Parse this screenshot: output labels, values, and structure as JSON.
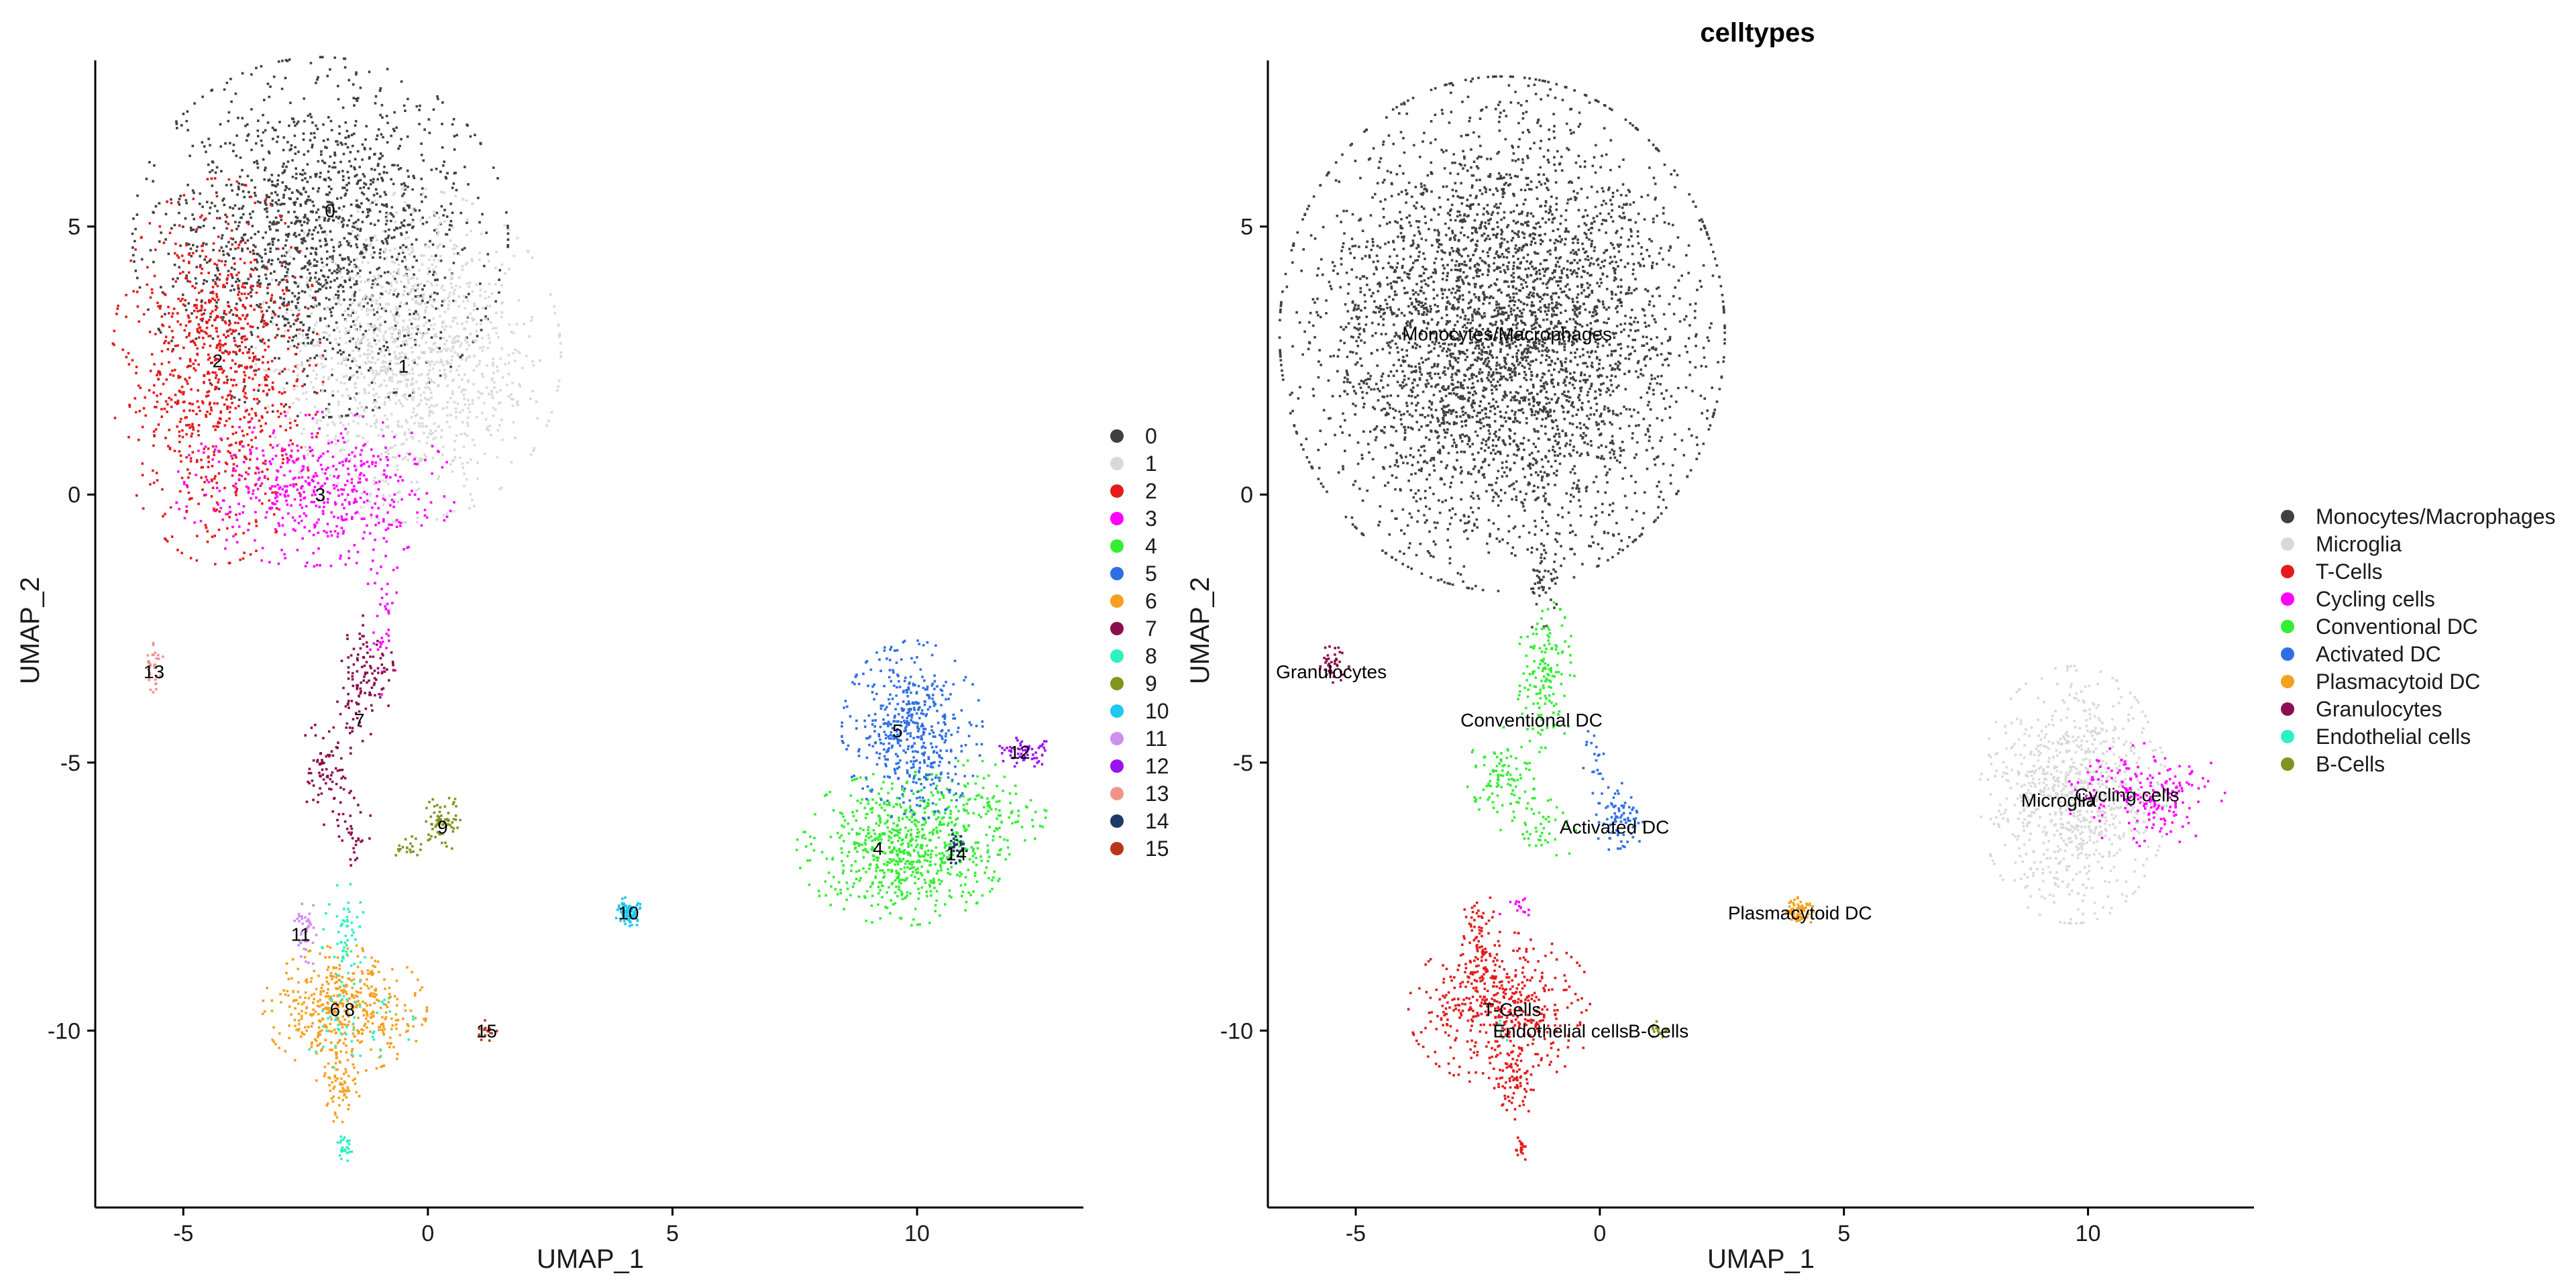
{
  "chart_data": [
    {
      "type": "scatter",
      "title": "",
      "xlabel": "UMAP_1",
      "ylabel": "UMAP_2",
      "xlim": [
        -6.8,
        13.4
      ],
      "ylim": [
        -13.3,
        8.1
      ],
      "xticks": [
        -5,
        0,
        5,
        10
      ],
      "yticks": [
        5,
        0,
        -5,
        -10
      ],
      "grid": false,
      "legend_position": "right",
      "series": [
        {
          "name": "0",
          "color": "#404040",
          "clusters": [
            {
              "cx": -2.2,
              "cy": 4.8,
              "sx": 1.6,
              "sy": 1.4,
              "n": 1600
            }
          ]
        },
        {
          "name": "1",
          "color": "#d9d9d9",
          "clusters": [
            {
              "cx": -0.4,
              "cy": 2.6,
              "sx": 1.3,
              "sy": 1.3,
              "n": 1300
            }
          ]
        },
        {
          "name": "2",
          "color": "#e41a1c",
          "clusters": [
            {
              "cx": -4.3,
              "cy": 2.3,
              "sx": 0.9,
              "sy": 1.5,
              "n": 900
            }
          ]
        },
        {
          "name": "3",
          "color": "#ff00ff",
          "clusters": [
            {
              "cx": -2.3,
              "cy": 0.1,
              "sx": 1.2,
              "sy": 0.6,
              "n": 500
            },
            {
              "cx": -0.9,
              "cy": -2.3,
              "sx": 0.15,
              "sy": 0.6,
              "n": 40
            }
          ]
        },
        {
          "name": "4",
          "color": "#33ee33",
          "clusters": [
            {
              "cx": 9.7,
              "cy": -6.6,
              "sx": 0.9,
              "sy": 0.6,
              "n": 700
            },
            {
              "cx": 11.2,
              "cy": -5.9,
              "sx": 0.6,
              "sy": 0.4,
              "n": 120
            }
          ]
        },
        {
          "name": "5",
          "color": "#2f6fe4",
          "clusters": [
            {
              "cx": 9.9,
              "cy": -4.4,
              "sx": 0.6,
              "sy": 0.7,
              "n": 500
            }
          ]
        },
        {
          "name": "6",
          "color": "#f5a020",
          "clusters": [
            {
              "cx": -1.7,
              "cy": -9.6,
              "sx": 0.7,
              "sy": 0.5,
              "n": 450
            },
            {
              "cx": -1.8,
              "cy": -11.0,
              "sx": 0.2,
              "sy": 0.3,
              "n": 70
            }
          ]
        },
        {
          "name": "7",
          "color": "#8b0e4e",
          "clusters": [
            {
              "cx": -1.3,
              "cy": -3.4,
              "sx": 0.25,
              "sy": 0.5,
              "n": 120
            },
            {
              "cx": -2.1,
              "cy": -5.2,
              "sx": 0.25,
              "sy": 0.4,
              "n": 80
            },
            {
              "cx": -1.5,
              "cy": -6.3,
              "sx": 0.15,
              "sy": 0.3,
              "n": 30
            }
          ]
        },
        {
          "name": "8",
          "color": "#2ef0c0",
          "clusters": [
            {
              "cx": -1.7,
              "cy": -8.2,
              "sx": 0.2,
              "sy": 0.4,
              "n": 60
            },
            {
              "cx": -1.7,
              "cy": -12.2,
              "sx": 0.08,
              "sy": 0.1,
              "n": 25
            },
            {
              "cx": -1.5,
              "cy": -9.8,
              "sx": 0.5,
              "sy": 0.4,
              "n": 50
            }
          ]
        },
        {
          "name": "9",
          "color": "#7f951e",
          "clusters": [
            {
              "cx": 0.3,
              "cy": -6.1,
              "sx": 0.15,
              "sy": 0.25,
              "n": 70
            },
            {
              "cx": -0.4,
              "cy": -6.6,
              "sx": 0.15,
              "sy": 0.1,
              "n": 20
            }
          ]
        },
        {
          "name": "10",
          "color": "#1ec8ef",
          "clusters": [
            {
              "cx": 4.1,
              "cy": -7.8,
              "sx": 0.12,
              "sy": 0.12,
              "n": 80
            }
          ]
        },
        {
          "name": "11",
          "color": "#d08ef0",
          "clusters": [
            {
              "cx": -2.5,
              "cy": -8.2,
              "sx": 0.1,
              "sy": 0.3,
              "n": 40
            }
          ]
        },
        {
          "name": "12",
          "color": "#9a10f0",
          "clusters": [
            {
              "cx": 12.2,
              "cy": -4.8,
              "sx": 0.25,
              "sy": 0.12,
              "n": 60
            }
          ]
        },
        {
          "name": "13",
          "color": "#f0948a",
          "clusters": [
            {
              "cx": -5.6,
              "cy": -3.2,
              "sx": 0.08,
              "sy": 0.25,
              "n": 30
            }
          ]
        },
        {
          "name": "14",
          "color": "#1f3a68",
          "clusters": [
            {
              "cx": 10.8,
              "cy": -6.6,
              "sx": 0.12,
              "sy": 0.15,
              "n": 30
            }
          ]
        },
        {
          "name": "15",
          "color": "#b8371c",
          "clusters": [
            {
              "cx": 1.2,
              "cy": -10.0,
              "sx": 0.1,
              "sy": 0.08,
              "n": 15
            }
          ]
        }
      ],
      "annotations": [
        {
          "text": "0",
          "x": -2.0,
          "y": 5.3
        },
        {
          "text": "1",
          "x": -0.5,
          "y": 2.4
        },
        {
          "text": "2",
          "x": -4.3,
          "y": 2.5
        },
        {
          "text": "3",
          "x": -2.2,
          "y": 0.0
        },
        {
          "text": "4",
          "x": 9.2,
          "y": -6.6
        },
        {
          "text": "5",
          "x": 9.6,
          "y": -4.4
        },
        {
          "text": "6",
          "x": -1.9,
          "y": -9.6
        },
        {
          "text": "7",
          "x": -1.4,
          "y": -4.2
        },
        {
          "text": "8",
          "x": -1.6,
          "y": -9.6
        },
        {
          "text": "9",
          "x": 0.3,
          "y": -6.2
        },
        {
          "text": "10",
          "x": 4.1,
          "y": -7.8
        },
        {
          "text": "11",
          "x": -2.6,
          "y": -8.2
        },
        {
          "text": "12",
          "x": 12.1,
          "y": -4.8
        },
        {
          "text": "13",
          "x": -5.6,
          "y": -3.3
        },
        {
          "text": "14",
          "x": 10.8,
          "y": -6.7
        },
        {
          "text": "15",
          "x": 1.2,
          "y": -10.0
        }
      ]
    },
    {
      "type": "scatter",
      "title": "celltypes",
      "xlabel": "UMAP_1",
      "ylabel": "UMAP_2",
      "xlim": [
        -6.8,
        13.4
      ],
      "ylim": [
        -13.3,
        8.1
      ],
      "xticks": [
        -5,
        0,
        5,
        10
      ],
      "yticks": [
        5,
        0,
        -5,
        -10
      ],
      "grid": false,
      "legend_position": "right",
      "series": [
        {
          "name": "Monocytes/Macrophages",
          "color": "#404040",
          "clusters": [
            {
              "cx": -2.0,
              "cy": 3.0,
              "sx": 1.9,
              "sy": 2.0,
              "n": 4000
            },
            {
              "cx": -1.1,
              "cy": -1.6,
              "sx": 0.2,
              "sy": 0.5,
              "n": 40
            }
          ]
        },
        {
          "name": "Microglia",
          "color": "#d9d9d9",
          "clusters": [
            {
              "cx": 9.7,
              "cy": -5.6,
              "sx": 0.8,
              "sy": 1.0,
              "n": 900
            }
          ]
        },
        {
          "name": "T-Cells",
          "color": "#e41a1c",
          "clusters": [
            {
              "cx": -2.0,
              "cy": -9.6,
              "sx": 0.8,
              "sy": 0.6,
              "n": 500
            },
            {
              "cx": -2.5,
              "cy": -8.2,
              "sx": 0.15,
              "sy": 0.4,
              "n": 60
            },
            {
              "cx": -1.8,
              "cy": -11.0,
              "sx": 0.2,
              "sy": 0.3,
              "n": 60
            },
            {
              "cx": -1.6,
              "cy": -12.2,
              "sx": 0.06,
              "sy": 0.1,
              "n": 20
            }
          ]
        },
        {
          "name": "Cycling cells",
          "color": "#ff00ff",
          "clusters": [
            {
              "cx": 11.2,
              "cy": -5.6,
              "sx": 0.7,
              "sy": 0.4,
              "n": 200
            },
            {
              "cx": -1.7,
              "cy": -7.7,
              "sx": 0.2,
              "sy": 0.1,
              "n": 15
            }
          ]
        },
        {
          "name": "Conventional DC",
          "color": "#33ee33",
          "clusters": [
            {
              "cx": -1.1,
              "cy": -3.4,
              "sx": 0.25,
              "sy": 0.6,
              "n": 150
            },
            {
              "cx": -2.0,
              "cy": -5.3,
              "sx": 0.3,
              "sy": 0.4,
              "n": 100
            },
            {
              "cx": -1.2,
              "cy": -6.3,
              "sx": 0.3,
              "sy": 0.3,
              "n": 40
            }
          ]
        },
        {
          "name": "Activated DC",
          "color": "#2f6fe4",
          "clusters": [
            {
              "cx": 0.4,
              "cy": -6.1,
              "sx": 0.2,
              "sy": 0.3,
              "n": 80
            },
            {
              "cx": -0.1,
              "cy": -5.0,
              "sx": 0.1,
              "sy": 0.3,
              "n": 20
            }
          ]
        },
        {
          "name": "Plasmacytoid DC",
          "color": "#f5a020",
          "clusters": [
            {
              "cx": 4.1,
              "cy": -7.8,
              "sx": 0.12,
              "sy": 0.12,
              "n": 80
            }
          ]
        },
        {
          "name": "Granulocytes",
          "color": "#8b0e4e",
          "clusters": [
            {
              "cx": -5.5,
              "cy": -3.2,
              "sx": 0.15,
              "sy": 0.2,
              "n": 40
            }
          ]
        },
        {
          "name": "Endothelial cells",
          "color": "#2ef0c0",
          "clusters": [
            {
              "cx": -2.0,
              "cy": -10.0,
              "sx": 0.1,
              "sy": 0.1,
              "n": 6
            }
          ]
        },
        {
          "name": "B-Cells",
          "color": "#7f951e",
          "clusters": [
            {
              "cx": 1.2,
              "cy": -10.0,
              "sx": 0.12,
              "sy": 0.08,
              "n": 15
            }
          ]
        }
      ],
      "annotations": [
        {
          "text": "Monocytes/Macrophages",
          "x": -1.9,
          "y": 3.0
        },
        {
          "text": "Granulocytes",
          "x": -5.5,
          "y": -3.3
        },
        {
          "text": "Conventional DC",
          "x": -1.4,
          "y": -4.2
        },
        {
          "text": "Activated DC",
          "x": 0.3,
          "y": -6.2
        },
        {
          "text": "Plasmacytoid DC",
          "x": 4.1,
          "y": -7.8
        },
        {
          "text": "Microglia",
          "x": 9.4,
          "y": -5.7
        },
        {
          "text": "Cycling cells",
          "x": 10.8,
          "y": -5.6
        },
        {
          "text": "T-Cells",
          "x": -1.8,
          "y": -9.6
        },
        {
          "text": "Endothelial cells",
          "x": -0.8,
          "y": -10.0
        },
        {
          "text": "B-Cells",
          "x": 1.2,
          "y": -10.0
        }
      ]
    }
  ]
}
